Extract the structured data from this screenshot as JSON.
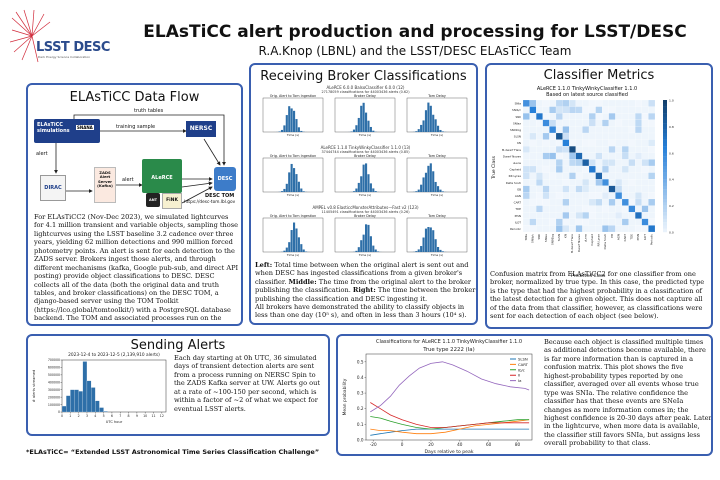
{
  "header": {
    "title": "ELAsTiCC alert production and processing for LSST/DESC",
    "authors": "R.A.Knop (LBNL) and the LSST/DESC ELAsTiCC Team",
    "logo_text": "LSST DESC",
    "logo_sub": "Dark Energy Science Collaboration"
  },
  "data_flow": {
    "title": "ELAsTiCC Data Flow",
    "elasticc_sims": "ELAsTiCC\nsimulations",
    "snana": "SNANA",
    "truth_tables": "truth tables",
    "training_sample": "training sample",
    "nersc": "NERSC",
    "alert_left": "alert",
    "alert_mid": "alert",
    "dirac": "DIRAC",
    "zads": "ZADS\nAlert\nServer\n(Kafka)",
    "alerce": "ALeRCE",
    "ant": "ANT",
    "fink": "FiNK",
    "desc_tom": "DESC TOM",
    "desc_tom_url": "https://desc-tom.lbl.gov",
    "body": "For ELAsTiCC2 (Nov-Dec 2023), we simulated lightcurves for 4.1 million transient and variable objects, sampling those lightcurves using the LSST baseline 3.2 cadence over three years, yielding 62 million detections and 990 million forced photometry points. An alert is sent for each detection to the ZADS server. Brokers ingest those alerts, and through different mechanisms (kafka, Google pub-sub, and direct API posting) provide object classifications to DESC. DESC collects all of the data (both the original data and truth tables, and broker classifications) on the DESC TOM, a django-based server using the TOM Toolkit (https://lco.global/tomtoolkit/) with a PostgreSQL database backend. The TOM and associated processes run on the NERSC Spin kubernetes service."
  },
  "broker": {
    "title": "Receiving Broker Classifications",
    "rows": [
      {
        "label": "ALeRCE 6.0.0 BalsoClassifier 6.0.0 (12)",
        "sub": "27178059 classifications for 44003436 alerts (0.62)",
        "cols": [
          "Orig. Alert to Tom Ingestion",
          "Broker Delay",
          "Tom Delay"
        ]
      },
      {
        "label": "ALeRCE 1.1.0 TinkyWinkyClassifier 1.1.0 (13)",
        "sub": "37444744 classifications for 44003436 alerts (0.85)",
        "cols": [
          "Orig. Alert to Tom Ingestion",
          "Broker Delay",
          "Tom Delay"
        ]
      },
      {
        "label": "AMPEL v0.8 ElasticcMonsterAttributes—Fast v2 (123)",
        "sub": "11405491 classifications for 44003436 alerts (0.26)",
        "cols": [
          "Orig. Alert to Tom Ingestion",
          "Broker Delay",
          "Tom Delay"
        ]
      }
    ],
    "axis_x": "Time (s)",
    "caption_left_bold": "Left:",
    "caption_left": " Total time between when the original alert is sent out and when DESC has ingested classifications from a given broker's classifier. ",
    "caption_mid_bold": "Middle:",
    "caption_mid": " The time from the original alert to the broker publishing the classification. ",
    "caption_right_bold": "Right:",
    "caption_right": " The time between the broker publishing the classification and DESC ingesting it.",
    "caption2": "All brokers have demonstrated the ability to classify objects in less than one day (10⁵ s), and often in less than 3 hours (10⁴ s)."
  },
  "metrics": {
    "title": "Classifier Metrics",
    "cm_title": "ALeRCE 1.1.0 TinkyWinkyClassifier 1.1.0",
    "cm_subtitle": "Based on latest source classified",
    "ylabel": "True Class",
    "xlabel": "Predicted Class",
    "classes": [
      "SNIa",
      "SNIb/c",
      "SNII",
      "SNIax",
      "SN91bg",
      "SLSN",
      "KN",
      "M-dwarf Flare",
      "Dwarf Novae",
      "uLens",
      "Cepheid",
      "RR Lyrae",
      "Delta Scuti",
      "EB",
      "AGN",
      "CART",
      "TDE",
      "PISN",
      "ILOT",
      "Periodic"
    ],
    "colorbar": [
      "1.0",
      "0.8",
      "0.6",
      "0.4",
      "0.2",
      "0.0"
    ],
    "body": "Confusion matrix from ELAsTiCC2 for one classifier from one broker, normalized by true type. In this case, the predicted type is the type that had the highest probability in a classification of the latest detection for a given object. This does not capture all of the data from that classifier, however, as classifications were sent for each detection of each object (see below)."
  },
  "sending": {
    "title": "Sending Alerts",
    "chart_title": "2023-12-4 to 2023-12-5 (2,139,910 alerts)",
    "body": "Each day starting at 0h UTC, 36 simulated days of transient detection alerts are sent from a process running on NERSC Spin to the ZADS Kafka server at UW. Alerts go out at a rate of ~100-150 per second, which is within a factor of ~2 of what we expect for eventual LSST alerts."
  },
  "probability": {
    "body": "Because each object is classified multiple times as additional detections become available, there is far more information than is captured in a confusion matrix. This plot shows the five highest-probability types reported by one classifier, averaged over all events whose true type was SNIa. The relative confidence the classifier has that these events are SNeIa changes as more information comes in; the highest confidence is 20-30 days after peak. Later in the lightcurve, when more data is available, the classifier still favors SNIa, but assigns less overall probability to that class."
  },
  "footnote": "*ELAsTiCC= “Extended LSST Astronomical Time Series Classification Challenge”",
  "chart_data": [
    {
      "type": "bar",
      "title": "2023-12-4 to 2023-12-5 (2,139,910 alerts)",
      "xlabel": "UTC hour",
      "ylabel": "# alerts streamed",
      "x": [
        0.5,
        1,
        1.5,
        2,
        2.5,
        3,
        3.5,
        4,
        4.5,
        5,
        5.5
      ],
      "values": [
        80000,
        220000,
        300000,
        300000,
        280000,
        680000,
        420000,
        330000,
        150000,
        60000,
        10000
      ],
      "xticks": [
        0,
        1,
        2,
        3,
        4,
        5,
        6,
        7,
        8,
        9,
        10,
        11,
        12
      ],
      "yticks": [
        0,
        100000,
        200000,
        300000,
        400000,
        500000,
        600000,
        700000
      ],
      "ylim": [
        0,
        700000
      ],
      "xlim": [
        0,
        12.5
      ],
      "color": "#2e6fa8"
    },
    {
      "type": "line",
      "title": "Classifications for ALeRCE 1.1.0 TinkyWinkyClassifier 1.1.0",
      "subtitle": "True type 2222 (Ia)",
      "xlabel": "Days relative to peak",
      "ylabel": "Mean probability",
      "xlim": [
        -25,
        90
      ],
      "ylim": [
        0,
        0.55
      ],
      "xticks": [
        -20,
        0,
        20,
        40,
        60,
        80
      ],
      "yticks": [
        0.0,
        0.1,
        0.2,
        0.3,
        0.4,
        0.5
      ],
      "series": [
        {
          "name": "SLSN",
          "color": "#1f77b4",
          "x": [
            -22,
            -15,
            -8,
            0,
            10,
            20,
            30,
            40,
            50,
            60,
            70,
            80,
            88
          ],
          "y": [
            0.03,
            0.04,
            0.05,
            0.06,
            0.07,
            0.07,
            0.07,
            0.07,
            0.07,
            0.07,
            0.07,
            0.07,
            0.07
          ]
        },
        {
          "name": "CART",
          "color": "#ff7f0e",
          "x": [
            -22,
            -15,
            -8,
            0,
            10,
            20,
            30,
            40,
            50,
            60,
            70,
            80,
            88
          ],
          "y": [
            0.07,
            0.06,
            0.06,
            0.05,
            0.04,
            0.04,
            0.05,
            0.07,
            0.09,
            0.1,
            0.11,
            0.12,
            0.13
          ]
        },
        {
          "name": "Ib/c",
          "color": "#2ca02c",
          "x": [
            -22,
            -15,
            -8,
            0,
            10,
            20,
            30,
            40,
            50,
            60,
            70,
            80,
            88
          ],
          "y": [
            0.15,
            0.14,
            0.12,
            0.1,
            0.08,
            0.07,
            0.08,
            0.09,
            0.1,
            0.11,
            0.12,
            0.13,
            0.13
          ]
        },
        {
          "name": "II",
          "color": "#d62728",
          "x": [
            -22,
            -15,
            -8,
            0,
            10,
            20,
            30,
            40,
            50,
            60,
            70,
            80,
            88
          ],
          "y": [
            0.24,
            0.2,
            0.16,
            0.13,
            0.1,
            0.08,
            0.08,
            0.09,
            0.1,
            0.11,
            0.11,
            0.11,
            0.11
          ]
        },
        {
          "name": "Ia",
          "color": "#9467bd",
          "x": [
            -22,
            -15,
            -8,
            -2,
            5,
            12,
            20,
            28,
            35,
            45,
            55,
            65,
            75,
            85,
            88
          ],
          "y": [
            0.18,
            0.22,
            0.28,
            0.35,
            0.41,
            0.46,
            0.49,
            0.5,
            0.48,
            0.44,
            0.39,
            0.36,
            0.34,
            0.33,
            0.32
          ]
        }
      ]
    }
  ]
}
